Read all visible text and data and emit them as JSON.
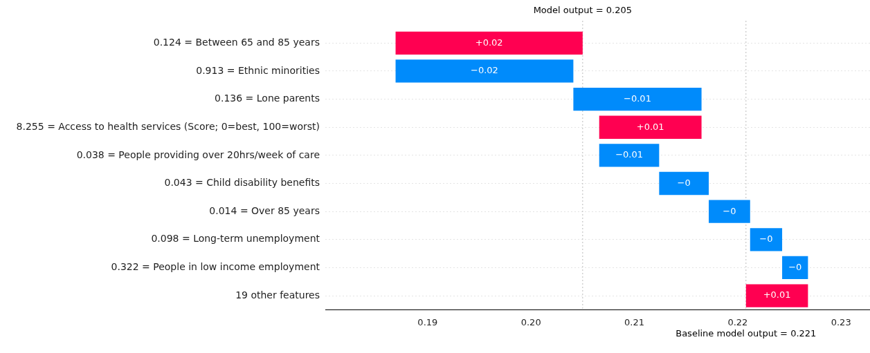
{
  "chart_data": {
    "type": "bar",
    "orientation": "horizontal",
    "categories": [
      "0.124 = Between 65 and 85 years",
      "0.913 = Ethnic minorities",
      "0.136 = Lone parents",
      "8.255 = Access to health services (Score; 0=best, 100=worst)",
      "0.038 = People providing over 20hrs/week of care",
      "0.043 = Child disability benefits",
      "0.014 = Over 85 years",
      "0.098 = Long-term unemployment",
      "0.322 = People in low income employment",
      "19 other features"
    ],
    "base": [
      0.1869,
      0.2041,
      0.2165,
      0.2066,
      0.2124,
      0.2172,
      0.2212,
      0.2243,
      0.2268,
      0.2208
    ],
    "values": [
      0.0181,
      -0.0172,
      -0.0124,
      0.0099,
      -0.0058,
      -0.0048,
      -0.004,
      -0.0031,
      -0.0025,
      0.006
    ],
    "colors": [
      "#ff0051",
      "#008bfb",
      "#008bfb",
      "#ff0051",
      "#008bfb",
      "#008bfb",
      "#008bfb",
      "#008bfb",
      "#008bfb",
      "#ff0051"
    ],
    "value_labels": [
      "+0.02",
      "−0.02",
      "−0.01",
      "+0.01",
      "−0.01",
      "−0",
      "−0",
      "−0",
      "−0",
      "+0.01"
    ],
    "xlim": [
      0.1801,
      0.2328
    ],
    "xticks": [
      {
        "value": 0.19,
        "label": "0.19"
      },
      {
        "value": 0.2,
        "label": "0.20"
      },
      {
        "value": 0.21,
        "label": "0.21"
      },
      {
        "value": 0.22,
        "label": "0.22"
      },
      {
        "value": 0.23,
        "label": "0.23"
      }
    ],
    "ref_lines": [
      {
        "axis": "x",
        "value": 0.205,
        "label": "Model output = 0.205",
        "color": "#bbbbbb",
        "line_style": "dotted"
      },
      {
        "axis": "x",
        "value": 0.2208,
        "label": "Baseline model output = 0.221",
        "color": "#bbbbbb",
        "line_style": "dotted"
      }
    ],
    "grid": "y",
    "legend": false
  }
}
